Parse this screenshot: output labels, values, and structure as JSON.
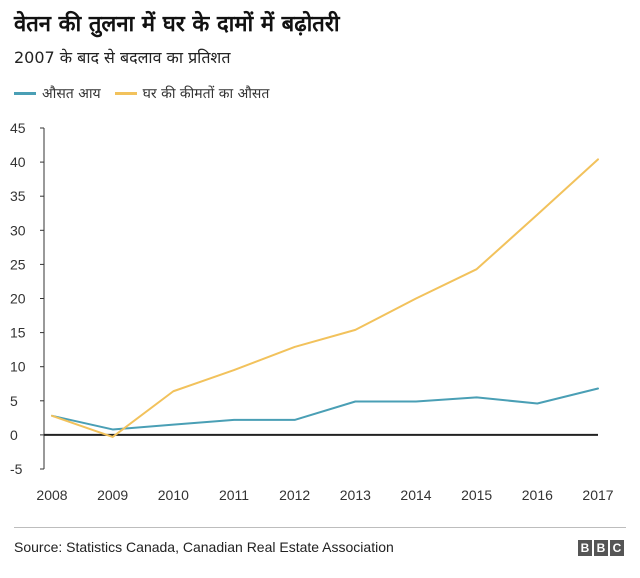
{
  "header": {
    "title": "वेतन की तुलना में घर के दामों में बढ़ोतरी",
    "subtitle": "2007 के बाद से बदलाव का प्रतिशत"
  },
  "footer": {
    "source": "Source: Statistics Canada, Canadian Real Estate Association",
    "logo": [
      "B",
      "B",
      "C"
    ]
  },
  "colors": {
    "income": "#4a9fb5",
    "house_price": "#f2c25c",
    "zero_line": "#222222"
  },
  "chart_data": {
    "type": "line",
    "title": "वेतन की तुलना में घर के दामों में बढ़ोतरी",
    "subtitle": "2007 के बाद से बदलाव का प्रतिशत",
    "x": [
      "2008",
      "2009",
      "2010",
      "2011",
      "2012",
      "2013",
      "2014",
      "2015",
      "2016",
      "2017"
    ],
    "series": [
      {
        "name": "औसत आय",
        "color": "#4a9fb5",
        "values": [
          2.8,
          0.8,
          1.5,
          2.2,
          2.2,
          4.9,
          4.9,
          5.5,
          4.6,
          6.8
        ]
      },
      {
        "name": "घर की कीमतों का औसत",
        "color": "#f2c25c",
        "values": [
          2.8,
          -0.3,
          6.4,
          9.5,
          12.9,
          15.4,
          20.0,
          24.3,
          32.3,
          40.4
        ]
      }
    ],
    "ylim": [
      -5,
      45
    ],
    "yticks": [
      -5,
      0,
      5,
      10,
      15,
      20,
      25,
      30,
      35,
      40,
      45
    ],
    "grid": false,
    "legend": "top-left"
  }
}
